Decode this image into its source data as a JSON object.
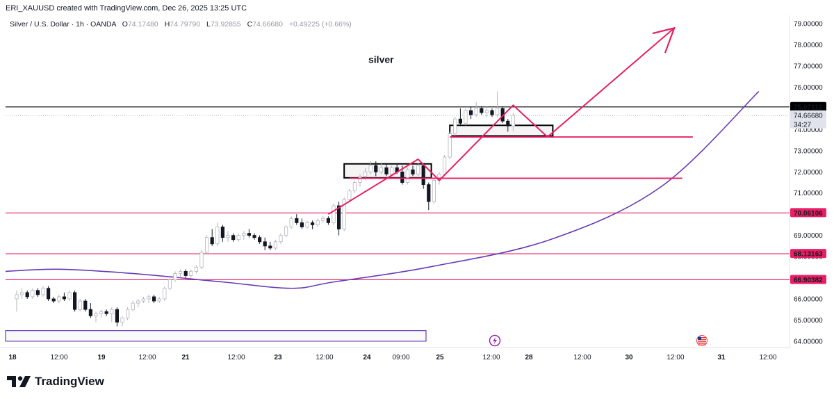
{
  "header": {
    "created_line": "ERI_XAUUSD created with TradingView.com, Dec 26, 2025 13:25 UTC"
  },
  "legend": {
    "symbol": "Silver / U.S. Dollar · 1h · OANDA",
    "o_label": "O",
    "o_value": "74.17480",
    "h_label": "H",
    "h_value": "74.79790",
    "l_label": "L",
    "l_value": "73.92855",
    "c_label": "C",
    "c_value": "74.66680",
    "change": "+0.49225 (+0.66%)"
  },
  "footer": {
    "brand": "TradingView"
  },
  "colors": {
    "up": "#ffffff",
    "up_border": "#b2b5be",
    "down": "#131722",
    "magenta": "#e91e63",
    "purple": "#673ab7",
    "black": "#000000"
  },
  "chart_data": {
    "type": "candlestick",
    "annotation": "silver",
    "y_axis": {
      "ticks": [
        "79.00000",
        "78.00000",
        "77.00000",
        "76.00000",
        "75.00000",
        "74.00000",
        "73.00000",
        "72.00000",
        "71.00000",
        "70.00000",
        "69.00000",
        "68.00000",
        "67.00000",
        "66.00000",
        "65.00000",
        "64.00000"
      ],
      "range": [
        63.7,
        79.4
      ]
    },
    "x_axis": {
      "ticks": [
        {
          "label": "18",
          "bold": true
        },
        {
          "label": "12:00",
          "bold": false
        },
        {
          "label": "19",
          "bold": true
        },
        {
          "label": "12:00",
          "bold": false
        },
        {
          "label": "21",
          "bold": true
        },
        {
          "label": "12:00",
          "bold": false
        },
        {
          "label": "23",
          "bold": true
        },
        {
          "label": "12:00",
          "bold": false
        },
        {
          "label": "24",
          "bold": true
        },
        {
          "label": "09:00",
          "bold": false
        },
        {
          "label": "25",
          "bold": true
        },
        {
          "label": "12:00",
          "bold": false
        },
        {
          "label": "28",
          "bold": true
        },
        {
          "label": "12:00",
          "bold": false
        },
        {
          "label": "30",
          "bold": true
        },
        {
          "label": "12:00",
          "bold": false
        },
        {
          "label": "31",
          "bold": true
        },
        {
          "label": "12:00",
          "bold": false
        }
      ]
    },
    "price_labels": [
      {
        "text": "75.07112",
        "value": 75.07112,
        "style": "black"
      },
      {
        "text": "74.66680",
        "value": 74.6668,
        "style": "grey"
      },
      {
        "text": "34:27",
        "value": 74.3,
        "style": "grey"
      },
      {
        "text": "70.06106",
        "value": 70.06106,
        "style": "magenta"
      },
      {
        "text": "68.13163",
        "value": 68.13163,
        "style": "magenta"
      },
      {
        "text": "66.90382",
        "value": 66.90382,
        "style": "magenta"
      }
    ],
    "horizontal_lines": [
      {
        "value": 75.07112,
        "color": "black"
      },
      {
        "value": 70.06106,
        "color": "magenta"
      },
      {
        "value": 68.13163,
        "color": "magenta"
      },
      {
        "value": 66.90382,
        "color": "magenta"
      }
    ],
    "candles": [
      [
        66.0,
        66.4,
        65.4,
        66.2
      ],
      [
        66.2,
        66.5,
        66.0,
        66.3
      ],
      [
        66.3,
        66.4,
        66.0,
        66.1
      ],
      [
        66.1,
        66.5,
        66.0,
        66.4
      ],
      [
        66.4,
        66.5,
        66.1,
        66.2
      ],
      [
        66.2,
        66.6,
        66.1,
        66.5
      ],
      [
        66.5,
        66.6,
        65.9,
        66.0
      ],
      [
        66.0,
        66.1,
        65.8,
        65.9
      ],
      [
        65.9,
        66.2,
        65.8,
        66.1
      ],
      [
        66.1,
        66.3,
        65.9,
        66.0
      ],
      [
        66.0,
        66.4,
        65.9,
        66.3
      ],
      [
        66.3,
        66.4,
        65.4,
        65.5
      ],
      [
        65.5,
        66.0,
        65.4,
        65.9
      ],
      [
        65.9,
        66.0,
        65.4,
        65.5
      ],
      [
        65.5,
        65.8,
        65.1,
        65.2
      ],
      [
        65.2,
        65.4,
        64.9,
        65.3
      ],
      [
        65.3,
        65.5,
        65.1,
        65.4
      ],
      [
        65.4,
        65.5,
        65.2,
        65.3
      ],
      [
        65.3,
        65.6,
        64.9,
        65.5
      ],
      [
        65.5,
        65.6,
        64.7,
        64.9
      ],
      [
        64.9,
        65.2,
        64.7,
        65.1
      ],
      [
        65.1,
        65.6,
        65.0,
        65.5
      ],
      [
        65.5,
        65.9,
        65.4,
        65.8
      ],
      [
        65.8,
        66.0,
        65.6,
        65.9
      ],
      [
        65.9,
        66.1,
        65.8,
        66.0
      ],
      [
        66.0,
        66.2,
        65.8,
        66.1
      ],
      [
        66.1,
        66.2,
        65.8,
        65.9
      ],
      [
        65.9,
        66.1,
        65.8,
        66.0
      ],
      [
        66.0,
        66.6,
        65.9,
        66.5
      ],
      [
        66.5,
        67.0,
        66.4,
        66.9
      ],
      [
        66.9,
        67.3,
        66.8,
        67.2
      ],
      [
        67.2,
        67.4,
        67.0,
        67.3
      ],
      [
        67.3,
        67.4,
        67.0,
        67.1
      ],
      [
        67.1,
        67.4,
        67.0,
        67.3
      ],
      [
        67.3,
        67.6,
        67.2,
        67.5
      ],
      [
        67.5,
        68.3,
        67.4,
        68.2
      ],
      [
        68.2,
        69.0,
        68.1,
        68.9
      ],
      [
        68.9,
        69.3,
        68.5,
        68.6
      ],
      [
        68.6,
        69.6,
        68.5,
        69.4
      ],
      [
        69.4,
        69.5,
        68.7,
        68.9
      ],
      [
        68.9,
        69.2,
        68.7,
        69.0
      ],
      [
        69.0,
        69.1,
        68.7,
        68.8
      ],
      [
        68.8,
        69.1,
        68.7,
        69.0
      ],
      [
        69.0,
        69.2,
        68.8,
        69.1
      ],
      [
        69.1,
        69.3,
        68.9,
        69.0
      ],
      [
        69.0,
        69.1,
        68.8,
        68.9
      ],
      [
        68.9,
        69.0,
        68.6,
        68.7
      ],
      [
        68.7,
        68.9,
        68.3,
        68.5
      ],
      [
        68.5,
        68.7,
        68.3,
        68.4
      ],
      [
        68.4,
        68.8,
        68.3,
        68.7
      ],
      [
        68.7,
        69.1,
        68.6,
        69.0
      ],
      [
        69.0,
        69.5,
        68.9,
        69.4
      ],
      [
        69.4,
        69.9,
        69.3,
        69.8
      ],
      [
        69.8,
        70.0,
        69.5,
        69.6
      ],
      [
        69.6,
        69.8,
        69.3,
        69.4
      ],
      [
        69.4,
        69.7,
        69.3,
        69.6
      ],
      [
        69.6,
        69.7,
        69.3,
        69.5
      ],
      [
        69.5,
        69.8,
        69.4,
        69.7
      ],
      [
        69.7,
        69.9,
        69.6,
        69.8
      ],
      [
        69.8,
        69.9,
        69.5,
        69.6
      ],
      [
        69.6,
        70.5,
        69.5,
        70.4
      ],
      [
        70.4,
        70.6,
        69.0,
        69.3
      ],
      [
        69.3,
        70.8,
        69.2,
        70.7
      ],
      [
        70.7,
        71.2,
        70.6,
        71.1
      ],
      [
        71.1,
        71.6,
        71.0,
        71.5
      ],
      [
        71.5,
        71.9,
        71.3,
        71.8
      ],
      [
        71.8,
        72.2,
        71.6,
        72.0
      ],
      [
        72.0,
        72.5,
        71.9,
        72.3
      ],
      [
        72.3,
        72.5,
        71.8,
        72.0
      ],
      [
        72.0,
        72.4,
        71.9,
        72.2
      ],
      [
        72.2,
        72.4,
        71.8,
        71.9
      ],
      [
        71.9,
        72.3,
        71.8,
        72.2
      ],
      [
        72.2,
        72.4,
        71.9,
        72.0
      ],
      [
        72.0,
        72.3,
        71.4,
        71.5
      ],
      [
        71.5,
        72.2,
        71.4,
        72.1
      ],
      [
        72.1,
        72.3,
        71.8,
        71.9
      ],
      [
        71.9,
        72.4,
        71.8,
        72.3
      ],
      [
        72.3,
        72.4,
        71.2,
        71.4
      ],
      [
        71.4,
        71.5,
        70.2,
        70.6
      ],
      [
        70.6,
        71.7,
        70.5,
        71.6
      ],
      [
        71.6,
        72.0,
        71.4,
        71.9
      ],
      [
        71.9,
        72.8,
        71.8,
        72.7
      ],
      [
        72.7,
        73.9,
        72.6,
        73.8
      ],
      [
        73.8,
        74.6,
        73.7,
        74.5
      ],
      [
        74.5,
        75.0,
        74.2,
        74.3
      ],
      [
        74.3,
        75.0,
        74.2,
        74.9
      ],
      [
        74.9,
        75.1,
        74.5,
        74.7
      ],
      [
        74.7,
        75.3,
        74.6,
        75.0
      ],
      [
        75.0,
        75.1,
        74.7,
        74.8
      ],
      [
        74.8,
        75.1,
        74.6,
        74.9
      ],
      [
        74.9,
        75.0,
        74.6,
        74.7
      ],
      [
        74.7,
        75.8,
        74.6,
        75.0
      ],
      [
        75.0,
        75.1,
        74.3,
        74.4
      ],
      [
        74.4,
        74.5,
        73.9,
        74.17
      ],
      [
        74.17,
        74.8,
        73.93,
        74.67
      ]
    ],
    "drawings": {
      "rectangles": [
        {
          "t0": 62,
          "t1": 78.5,
          "p_top": 72.38,
          "p_bot": 71.72,
          "style": "black"
        },
        {
          "t0": 82,
          "t1": 101.5,
          "p_top": 74.2,
          "p_bot": 73.7,
          "style": "black"
        },
        {
          "t0": 0,
          "t1": 77.5,
          "p_top": 64.5,
          "p_bot": 64.0,
          "style": "purple"
        }
      ],
      "magenta_path": [
        [
          59,
          70.0
        ],
        [
          76,
          72.6
        ],
        [
          80,
          71.6
        ],
        [
          94,
          75.15
        ],
        [
          100.5,
          73.65
        ],
        [
          124.5,
          78.8
        ]
      ],
      "magenta_arrowhead": [
        [
          120.5,
          78.55
        ],
        [
          124.5,
          78.8
        ],
        [
          122.8,
          77.65
        ]
      ],
      "magenta_hlines": [
        {
          "t0": 63,
          "t1": 126,
          "value": 71.7
        },
        {
          "t0": 82,
          "t1": 128,
          "value": 73.65
        }
      ],
      "purple_curve": [
        [
          0,
          67.3
        ],
        [
          8,
          67.4
        ],
        [
          22,
          67.2
        ],
        [
          39,
          66.8
        ],
        [
          52,
          66.5
        ],
        [
          60,
          66.8
        ],
        [
          78,
          67.5
        ],
        [
          101,
          68.8
        ],
        [
          122,
          71.3
        ],
        [
          140.5,
          75.8
        ]
      ]
    },
    "event_icons": [
      "lightning",
      "us-flag"
    ]
  }
}
